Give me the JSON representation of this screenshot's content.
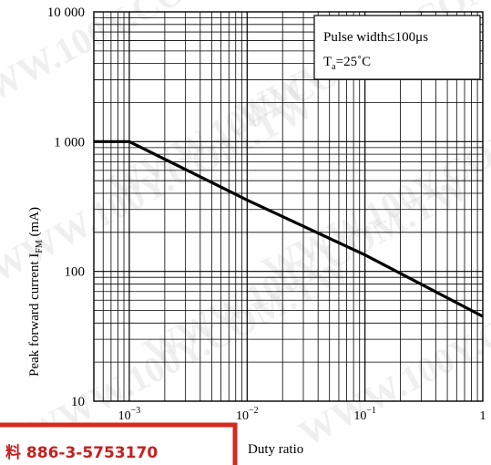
{
  "chart_data": {
    "type": "line",
    "xscale": "log",
    "yscale": "log",
    "xlim": [
      0.0005,
      1
    ],
    "ylim": [
      10,
      10000
    ],
    "xlabel": "Duty ratio",
    "ylabel": "Peak forward current I",
    "ylabel_sub": "FM",
    "ylabel_unit": " (mA)",
    "x_ticks": [
      {
        "value": 0.001,
        "base": "10",
        "exp": "−3"
      },
      {
        "value": 0.01,
        "base": "10",
        "exp": "−2"
      },
      {
        "value": 0.1,
        "base": "10",
        "exp": "−1"
      },
      {
        "value": 1,
        "base": "1",
        "exp": ""
      }
    ],
    "y_ticks": [
      {
        "value": 10,
        "label": "10"
      },
      {
        "value": 100,
        "label": "100"
      },
      {
        "value": 1000,
        "label": "1 000"
      },
      {
        "value": 10000,
        "label": "10 000"
      }
    ],
    "grid": true,
    "legend_position": "top-right",
    "annotation": {
      "line1": "Pulse width≤100μs",
      "line2_prefix": "T",
      "line2_sub": "a",
      "line2_suffix": "=25˚C"
    },
    "series": [
      {
        "x": [
          0.0005,
          0.001,
          0.01,
          0.1,
          1
        ],
        "y": [
          1000,
          1000,
          355,
          134,
          45
        ]
      }
    ],
    "line_color": "#000000"
  },
  "watermark": {
    "text": "WWW.100Y.COM.TW",
    "color": "#c9c9c9"
  },
  "footer_stamp": {
    "text": "料 886-3-5753170",
    "border_color": "#d62a1e"
  }
}
